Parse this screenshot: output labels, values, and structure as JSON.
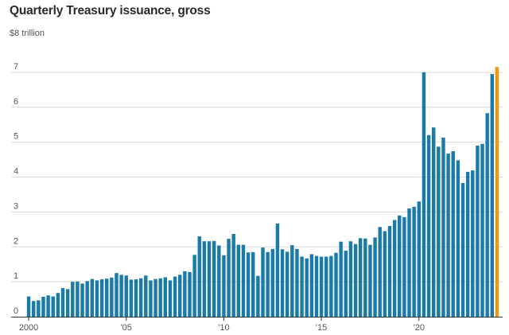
{
  "chart_data": {
    "type": "bar",
    "title": "Quarterly Treasury issuance, gross",
    "unit_label": "$8 trillion",
    "xlabel": "",
    "ylabel": "",
    "ylim": [
      0,
      8
    ],
    "y_ticks": [
      {
        "value": 0,
        "label": "0"
      },
      {
        "value": 1,
        "label": "1"
      },
      {
        "value": 2,
        "label": "2"
      },
      {
        "value": 3,
        "label": "3"
      },
      {
        "value": 4,
        "label": "4"
      },
      {
        "value": 5,
        "label": "5"
      },
      {
        "value": 6,
        "label": "6"
      },
      {
        "value": 7,
        "label": "7"
      }
    ],
    "x_ticks": [
      {
        "year": 2000,
        "label": "2000"
      },
      {
        "year": 2005,
        "label": "'05"
      },
      {
        "year": 2010,
        "label": "'10"
      },
      {
        "year": 2015,
        "label": "'15"
      },
      {
        "year": 2020,
        "label": "'20"
      }
    ],
    "start_year": 2000,
    "grid": true,
    "bar_color": "#1a7aa8",
    "highlight_color": "#f0950e",
    "values": [
      0.58,
      0.45,
      0.47,
      0.57,
      0.61,
      0.58,
      0.68,
      0.82,
      0.79,
      1.0,
      1.01,
      0.95,
      1.02,
      1.08,
      1.04,
      1.07,
      1.09,
      1.12,
      1.25,
      1.2,
      1.18,
      1.06,
      1.07,
      1.1,
      1.18,
      1.04,
      1.08,
      1.1,
      1.13,
      1.04,
      1.15,
      1.2,
      1.3,
      1.28,
      1.77,
      2.3,
      2.16,
      2.16,
      2.17,
      2.04,
      1.76,
      2.23,
      2.37,
      2.06,
      2.06,
      1.84,
      1.85,
      1.17,
      1.98,
      1.85,
      1.94,
      2.67,
      1.93,
      1.86,
      2.05,
      1.94,
      1.72,
      1.67,
      1.79,
      1.74,
      1.72,
      1.72,
      1.74,
      1.83,
      2.15,
      1.89,
      2.16,
      2.08,
      2.25,
      2.24,
      2.06,
      2.27,
      2.57,
      2.45,
      2.6,
      2.77,
      2.9,
      2.85,
      3.1,
      3.15,
      3.3,
      7.0,
      5.2,
      5.42,
      4.87,
      5.13,
      4.67,
      4.74,
      4.48,
      3.83,
      4.15,
      4.19,
      4.9,
      4.95,
      5.83,
      6.95,
      7.15
    ],
    "highlight_index": 96
  }
}
